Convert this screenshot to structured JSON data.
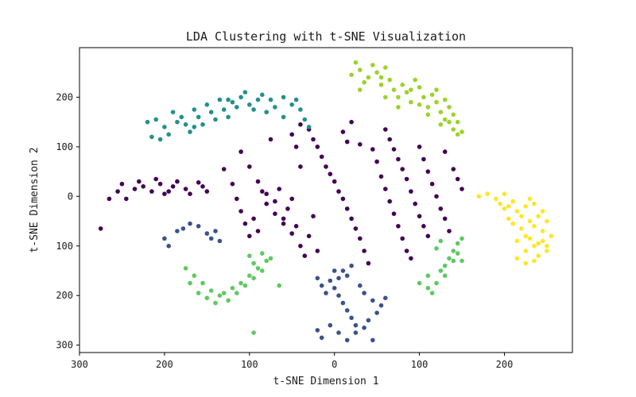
{
  "chart_data": {
    "type": "scatter",
    "title": "LDA Clustering with t-SNE Visualization",
    "xlabel": "t-SNE Dimension 1",
    "ylabel": "t-SNE Dimension 2",
    "xlim": [
      -300,
      280
    ],
    "ylim": [
      -315,
      300
    ],
    "x_ticks": [
      -300,
      -200,
      -100,
      0,
      100,
      200
    ],
    "x_tick_labels": [
      "300",
      "200",
      "100",
      "0",
      "100",
      "200"
    ],
    "y_ticks": [
      200,
      100,
      0,
      -100,
      -200,
      -300
    ],
    "y_tick_labels": [
      "200",
      "100",
      "0",
      "100",
      "200",
      "300"
    ],
    "grid": false,
    "legend": false,
    "series": [
      {
        "color": "#440154",
        "points": [
          [
            -275,
            -65
          ],
          [
            -265,
            -5
          ],
          [
            -255,
            10
          ],
          [
            -250,
            25
          ],
          [
            -245,
            -5
          ],
          [
            -235,
            15
          ],
          [
            -230,
            30
          ],
          [
            -215,
            10
          ],
          [
            -225,
            20
          ],
          [
            -210,
            35
          ],
          [
            -205,
            25
          ],
          [
            -200,
            5
          ],
          [
            -195,
            10
          ],
          [
            -190,
            20
          ],
          [
            -185,
            30
          ],
          [
            -175,
            15
          ],
          [
            -170,
            5
          ],
          [
            -160,
            28
          ],
          [
            -155,
            20
          ],
          [
            -150,
            10
          ],
          [
            -110,
            90
          ],
          [
            -100,
            60
          ],
          [
            -90,
            30
          ],
          [
            -85,
            10
          ],
          [
            -80,
            -15
          ],
          [
            -70,
            -35
          ],
          [
            -60,
            -55
          ],
          [
            -50,
            -75
          ],
          [
            -40,
            -100
          ],
          [
            -35,
            -120
          ],
          [
            -130,
            55
          ],
          [
            -120,
            25
          ],
          [
            -115,
            -5
          ],
          [
            -110,
            -30
          ],
          [
            -105,
            -55
          ],
          [
            -100,
            -80
          ],
          [
            -95,
            -45
          ],
          [
            -90,
            -70
          ],
          [
            -80,
            5
          ],
          [
            -70,
            -10
          ],
          [
            -65,
            15
          ],
          [
            -60,
            -45
          ],
          [
            -55,
            -25
          ],
          [
            -50,
            -5
          ],
          [
            -45,
            -60
          ],
          [
            -40,
            60
          ],
          [
            -30,
            -80
          ],
          [
            -25,
            -40
          ],
          [
            -20,
            -110
          ],
          [
            -75,
            115
          ],
          [
            -50,
            125
          ],
          [
            -45,
            100
          ],
          [
            -40,
            145
          ],
          [
            -30,
            135
          ],
          [
            -25,
            115
          ],
          [
            -20,
            100
          ],
          [
            -15,
            80
          ],
          [
            -10,
            60
          ],
          [
            -5,
            45
          ],
          [
            0,
            30
          ],
          [
            5,
            10
          ],
          [
            10,
            -5
          ],
          [
            15,
            -25
          ],
          [
            20,
            -45
          ],
          [
            25,
            -65
          ],
          [
            30,
            -85
          ],
          [
            35,
            -110
          ],
          [
            40,
            -135
          ],
          [
            10,
            130
          ],
          [
            15,
            110
          ],
          [
            20,
            150
          ],
          [
            30,
            105
          ],
          [
            45,
            95
          ],
          [
            50,
            70
          ],
          [
            55,
            40
          ],
          [
            60,
            15
          ],
          [
            65,
            -10
          ],
          [
            70,
            -35
          ],
          [
            75,
            -60
          ],
          [
            80,
            -85
          ],
          [
            85,
            -110
          ],
          [
            90,
            -125
          ],
          [
            60,
            135
          ],
          [
            65,
            115
          ],
          [
            70,
            95
          ],
          [
            75,
            75
          ],
          [
            80,
            55
          ],
          [
            85,
            35
          ],
          [
            90,
            10
          ],
          [
            95,
            -15
          ],
          [
            100,
            -40
          ],
          [
            105,
            -60
          ],
          [
            110,
            -80
          ],
          [
            100,
            100
          ],
          [
            105,
            75
          ],
          [
            110,
            50
          ],
          [
            115,
            25
          ],
          [
            120,
            0
          ],
          [
            125,
            -25
          ],
          [
            130,
            -45
          ],
          [
            135,
            -70
          ],
          [
            140,
            55
          ],
          [
            145,
            35
          ],
          [
            150,
            15
          ],
          [
            130,
            90
          ]
        ]
      },
      {
        "color": "#3b528b",
        "points": [
          [
            -200,
            -85
          ],
          [
            -195,
            -100
          ],
          [
            -185,
            -70
          ],
          [
            -178,
            -65
          ],
          [
            -170,
            -55
          ],
          [
            -160,
            -60
          ],
          [
            -150,
            -75
          ],
          [
            -145,
            -85
          ],
          [
            -140,
            -70
          ],
          [
            -135,
            -90
          ],
          [
            -20,
            -165
          ],
          [
            -15,
            -180
          ],
          [
            -10,
            -195
          ],
          [
            -5,
            -170
          ],
          [
            0,
            -185
          ],
          [
            5,
            -200
          ],
          [
            10,
            -215
          ],
          [
            15,
            -230
          ],
          [
            20,
            -245
          ],
          [
            25,
            -260
          ],
          [
            -20,
            -270
          ],
          [
            -15,
            -285
          ],
          [
            -5,
            -260
          ],
          [
            5,
            -275
          ],
          [
            15,
            -290
          ],
          [
            25,
            -275
          ],
          [
            35,
            -265
          ],
          [
            45,
            -290
          ],
          [
            40,
            -250
          ],
          [
            50,
            -235
          ],
          [
            55,
            -220
          ],
          [
            60,
            -205
          ],
          [
            10,
            -150
          ],
          [
            15,
            -160
          ],
          [
            20,
            -140
          ],
          [
            30,
            -180
          ],
          [
            35,
            -195
          ],
          [
            45,
            -210
          ],
          [
            0,
            -150
          ],
          [
            5,
            -165
          ]
        ]
      },
      {
        "color": "#21918c",
        "points": [
          [
            -220,
            150
          ],
          [
            -210,
            155
          ],
          [
            -200,
            140
          ],
          [
            -195,
            125
          ],
          [
            -190,
            170
          ],
          [
            -180,
            160
          ],
          [
            -175,
            145
          ],
          [
            -170,
            130
          ],
          [
            -165,
            175
          ],
          [
            -160,
            160
          ],
          [
            -150,
            185
          ],
          [
            -145,
            170
          ],
          [
            -140,
            155
          ],
          [
            -135,
            195
          ],
          [
            -130,
            175
          ],
          [
            -125,
            160
          ],
          [
            -120,
            190
          ],
          [
            -110,
            200
          ],
          [
            -100,
            185
          ],
          [
            -90,
            195
          ],
          [
            -80,
            170
          ],
          [
            -70,
            180
          ],
          [
            -60,
            160
          ],
          [
            -50,
            185
          ],
          [
            -40,
            175
          ],
          [
            -35,
            155
          ],
          [
            -30,
            140
          ],
          [
            -85,
            205
          ],
          [
            -95,
            175
          ],
          [
            -105,
            210
          ],
          [
            -115,
            180
          ],
          [
            -155,
            145
          ],
          [
            -165,
            140
          ],
          [
            -185,
            150
          ],
          [
            -205,
            115
          ],
          [
            -215,
            120
          ],
          [
            -60,
            200
          ],
          [
            -45,
            195
          ],
          [
            -75,
            195
          ],
          [
            -125,
            195
          ]
        ]
      },
      {
        "color": "#5ec962",
        "points": [
          [
            -175,
            -145
          ],
          [
            -165,
            -160
          ],
          [
            -155,
            -175
          ],
          [
            -145,
            -190
          ],
          [
            -135,
            -200
          ],
          [
            -125,
            -210
          ],
          [
            -115,
            -195
          ],
          [
            -105,
            -180
          ],
          [
            -95,
            -165
          ],
          [
            -85,
            -150
          ],
          [
            -170,
            -175
          ],
          [
            -160,
            -195
          ],
          [
            -150,
            -205
          ],
          [
            -140,
            -215
          ],
          [
            -130,
            -195
          ],
          [
            -120,
            -185
          ],
          [
            -110,
            -175
          ],
          [
            -100,
            -160
          ],
          [
            -90,
            -145
          ],
          [
            -80,
            -130
          ],
          [
            -100,
            -120
          ],
          [
            -95,
            -135
          ],
          [
            -85,
            -115
          ],
          [
            -75,
            -125
          ],
          [
            -65,
            -180
          ],
          [
            -95,
            -275
          ],
          [
            100,
            -175
          ],
          [
            110,
            -160
          ],
          [
            120,
            -175
          ],
          [
            125,
            -150
          ],
          [
            130,
            -140
          ],
          [
            135,
            -125
          ],
          [
            140,
            -110
          ],
          [
            145,
            -95
          ],
          [
            150,
            -85
          ],
          [
            115,
            -195
          ],
          [
            140,
            -130
          ],
          [
            145,
            -115
          ],
          [
            120,
            -105
          ],
          [
            125,
            -90
          ],
          [
            150,
            -130
          ],
          [
            110,
            -185
          ],
          [
            130,
            -160
          ]
        ]
      },
      {
        "color": "#fde725",
        "points": [
          [
            170,
            0
          ],
          [
            180,
            5
          ],
          [
            190,
            -5
          ],
          [
            200,
            5
          ],
          [
            210,
            -10
          ],
          [
            205,
            -20
          ],
          [
            215,
            -30
          ],
          [
            225,
            -20
          ],
          [
            220,
            -40
          ],
          [
            230,
            -50
          ],
          [
            240,
            -40
          ],
          [
            235,
            -60
          ],
          [
            245,
            -70
          ],
          [
            250,
            -50
          ],
          [
            255,
            -80
          ],
          [
            245,
            -90
          ],
          [
            235,
            -100
          ],
          [
            225,
            -80
          ],
          [
            215,
            -90
          ],
          [
            225,
            -110
          ],
          [
            240,
            -120
          ],
          [
            250,
            -110
          ],
          [
            215,
            -125
          ],
          [
            225,
            -135
          ],
          [
            235,
            -130
          ],
          [
            195,
            -15
          ],
          [
            200,
            -25
          ],
          [
            210,
            -55
          ],
          [
            220,
            -65
          ],
          [
            230,
            -85
          ],
          [
            240,
            -95
          ],
          [
            250,
            -100
          ],
          [
            245,
            -30
          ],
          [
            235,
            -15
          ],
          [
            230,
            -5
          ],
          [
            205,
            -45
          ]
        ]
      },
      {
        "color": "#9cd32a",
        "points": [
          [
            20,
            245
          ],
          [
            25,
            270
          ],
          [
            30,
            255
          ],
          [
            35,
            230
          ],
          [
            40,
            240
          ],
          [
            45,
            265
          ],
          [
            50,
            250
          ],
          [
            55,
            225
          ],
          [
            60,
            260
          ],
          [
            65,
            235
          ],
          [
            70,
            215
          ],
          [
            75,
            200
          ],
          [
            80,
            225
          ],
          [
            85,
            210
          ],
          [
            90,
            190
          ],
          [
            95,
            235
          ],
          [
            100,
            220
          ],
          [
            105,
            200
          ],
          [
            110,
            180
          ],
          [
            115,
            205
          ],
          [
            120,
            190
          ],
          [
            125,
            170
          ],
          [
            130,
            155
          ],
          [
            135,
            180
          ],
          [
            140,
            165
          ],
          [
            145,
            150
          ],
          [
            150,
            130
          ],
          [
            145,
            125
          ],
          [
            135,
            150
          ],
          [
            120,
            215
          ],
          [
            110,
            165
          ],
          [
            100,
            185
          ],
          [
            90,
            215
          ],
          [
            55,
            240
          ],
          [
            30,
            215
          ],
          [
            60,
            200
          ],
          [
            75,
            180
          ],
          [
            130,
            195
          ],
          [
            140,
            135
          ],
          [
            125,
            145
          ]
        ]
      }
    ]
  }
}
